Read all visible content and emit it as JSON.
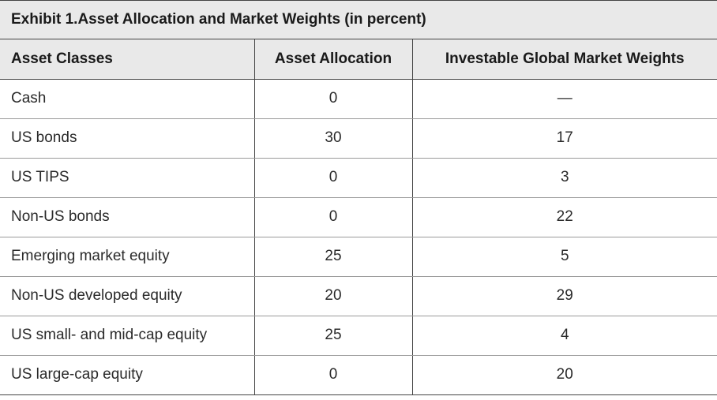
{
  "exhibit": {
    "title": "Exhibit 1.Asset Allocation and  Market Weights (in percent)"
  },
  "table": {
    "headers": [
      "Asset Classes",
      "Asset Allocation",
      "Investable Global Market Weights"
    ],
    "rows": [
      [
        "Cash",
        "0",
        "—"
      ],
      [
        "US bonds",
        "30",
        "17"
      ],
      [
        "US TIPS",
        "0",
        "3"
      ],
      [
        "Non-US bonds",
        "0",
        "22"
      ],
      [
        "Emerging market equity",
        "25",
        "5"
      ],
      [
        "Non-US developed equity",
        "20",
        "29"
      ],
      [
        "US small- and mid-cap equity",
        "25",
        "4"
      ],
      [
        "US large-cap equity",
        "0",
        "20"
      ]
    ]
  }
}
